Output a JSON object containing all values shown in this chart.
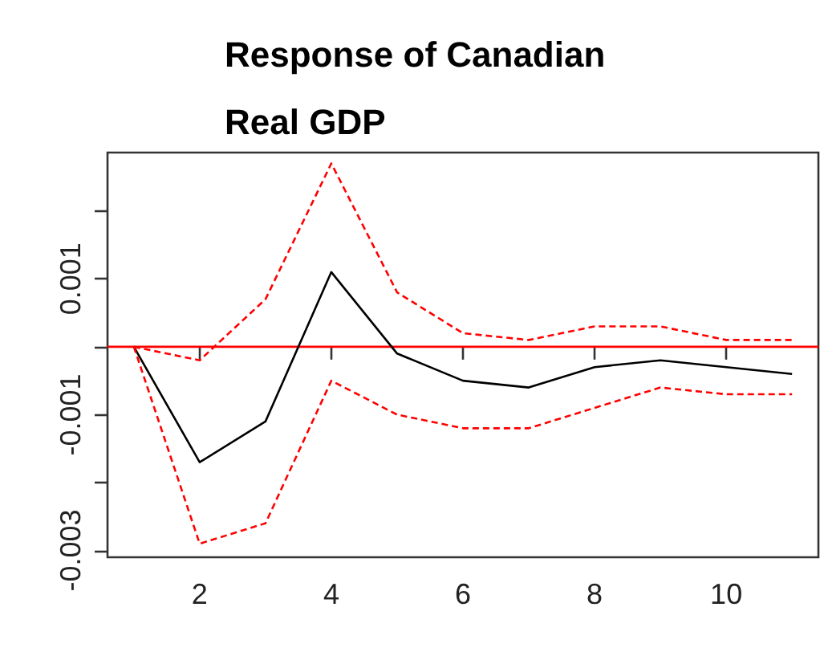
{
  "chart_data": {
    "type": "line",
    "title": "Response of Canadian Real GDP",
    "x": [
      1,
      2,
      3,
      4,
      5,
      6,
      7,
      8,
      9,
      10,
      11
    ],
    "series": [
      {
        "color": "#000000",
        "line_style": "solid",
        "values": [
          0,
          -0.0017,
          -0.0011,
          0.0011,
          -0.0001,
          -0.0005,
          -0.0006,
          -0.0003,
          -0.0002,
          -0.0003,
          -0.0004
        ]
      },
      {
        "color": "#ff0000",
        "line_style": "dashed",
        "values": [
          0,
          -0.0002,
          0.0007,
          0.0027,
          0.0008,
          0.0002,
          0.0001,
          0.0003,
          0.0003,
          0.0001,
          0.0001
        ]
      },
      {
        "color": "#ff0000",
        "line_style": "dashed",
        "values": [
          0,
          -0.0029,
          -0.0026,
          -0.0005,
          -0.001,
          -0.0012,
          -0.0012,
          -0.0009,
          -0.0006,
          -0.0007,
          -0.0007
        ]
      }
    ],
    "xlim": [
      0.6,
      11.4
    ],
    "xticks": [
      2,
      4,
      6,
      8,
      10
    ],
    "ylim": [
      -0.0031,
      0.00286
    ],
    "yticks": [
      {
        "value": -0.003,
        "label": "-0.003"
      },
      {
        "value": -0.002,
        "label": null
      },
      {
        "value": -0.001,
        "label": "-0.001"
      },
      {
        "value": 0,
        "label": null
      },
      {
        "value": 0.001,
        "label": "0.001"
      },
      {
        "value": 0.002,
        "label": null
      }
    ],
    "ref_lines": [
      {
        "axis": "y",
        "value": 0,
        "color": "#ff0000"
      }
    ],
    "grid": false,
    "marker": "none"
  }
}
